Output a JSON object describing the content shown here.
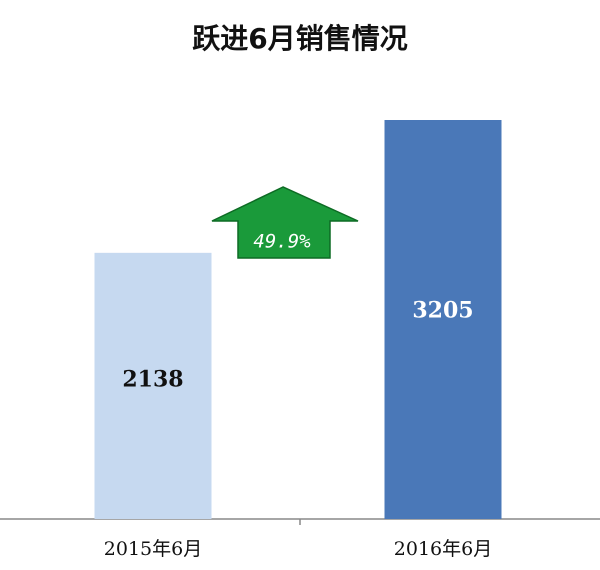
{
  "chart_data": {
    "type": "bar",
    "title": "跃进6月销售情况",
    "categories": [
      "2015年6月",
      "2016年6月"
    ],
    "values": [
      2138,
      3205
    ],
    "colors": [
      "#c6d9f0",
      "#4a78b8"
    ],
    "annotation": "49.9%"
  }
}
